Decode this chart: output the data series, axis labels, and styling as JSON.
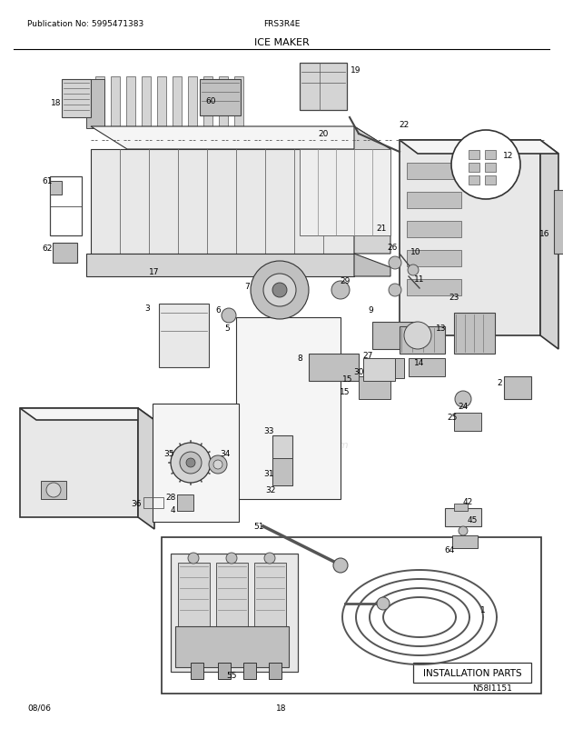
{
  "background_color": "#ffffff",
  "page_width": 6.2,
  "page_height": 8.03,
  "dpi": 100,
  "top_left_text": "Publication No: 5995471383",
  "top_center_text": "FRS3R4E",
  "top_title_text": "ICE MAKER",
  "bottom_left_text": "08/06",
  "bottom_center_text": "18",
  "text_color": "#000000",
  "watermark_text": "eabreplacementparts.com",
  "N_code": "N58I1151",
  "install_label": "INSTALLATION PARTS"
}
